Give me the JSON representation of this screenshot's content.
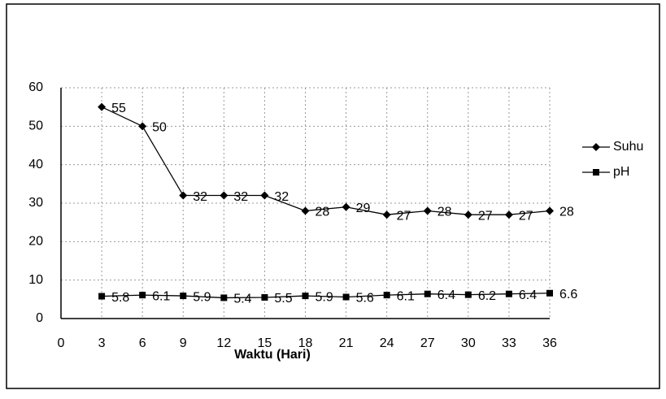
{
  "chart_data": {
    "type": "line",
    "x": [
      3,
      6,
      9,
      12,
      15,
      18,
      21,
      24,
      27,
      30,
      33,
      36
    ],
    "series": [
      {
        "name": "Suhu",
        "color": "#000000",
        "marker": "diamond",
        "values": [
          55,
          50,
          32,
          32,
          32,
          28,
          29,
          27,
          28,
          27,
          27,
          28
        ]
      },
      {
        "name": "pH",
        "color": "#000000",
        "marker": "square",
        "values": [
          5.8,
          6.1,
          5.9,
          5.4,
          5.5,
          5.9,
          5.6,
          6.1,
          6.4,
          6.2,
          6.4,
          6.6
        ]
      }
    ],
    "x_label": "Waktu (Hari)",
    "xlim": [
      0,
      36
    ],
    "xticks": [
      0,
      3,
      6,
      9,
      12,
      15,
      18,
      21,
      24,
      27,
      30,
      33,
      36
    ],
    "ylim": [
      0,
      60
    ],
    "yticks": [
      0,
      10,
      20,
      30,
      40,
      50,
      60
    ],
    "grid": true,
    "legend": "right"
  }
}
